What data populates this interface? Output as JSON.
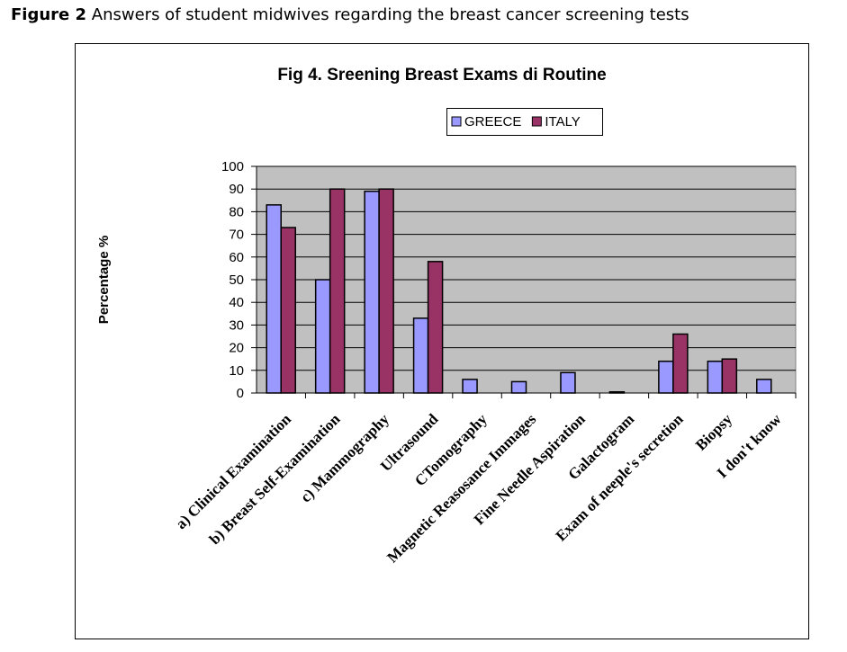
{
  "figure": {
    "label": "Figure 2",
    "text": "Answers of student midwives regarding the breast cancer screening tests"
  },
  "chart_data": {
    "type": "bar",
    "title": "Fig 4. Sreening  Breast Exams di Routine",
    "y_label": "Percentage %",
    "categories": [
      "a) Clinical Examination",
      "b) Breast Self-Examination",
      "c) Mammography",
      "Ultrasound",
      "CTomography",
      "Magnetic Reasosance Immages",
      "Fine Needle Aspiration",
      "Galactogram",
      "Exam of neeple's secretion",
      "Biopsy",
      "I don't know"
    ],
    "series": [
      {
        "name": "GREECE",
        "color": "#9999ff",
        "values": [
          83,
          50,
          89,
          33,
          6,
          5,
          9,
          0.5,
          14,
          14,
          6
        ]
      },
      {
        "name": "ITALY",
        "color": "#993366",
        "values": [
          73,
          90,
          90,
          58,
          0,
          0,
          0,
          0,
          26,
          15,
          0
        ]
      }
    ],
    "ylim": [
      0,
      100
    ],
    "yticks": [
      0,
      10,
      20,
      30,
      40,
      50,
      60,
      70,
      80,
      90,
      100
    ],
    "grid": true,
    "plot_background": "#c0c0c0",
    "legend": "top"
  }
}
